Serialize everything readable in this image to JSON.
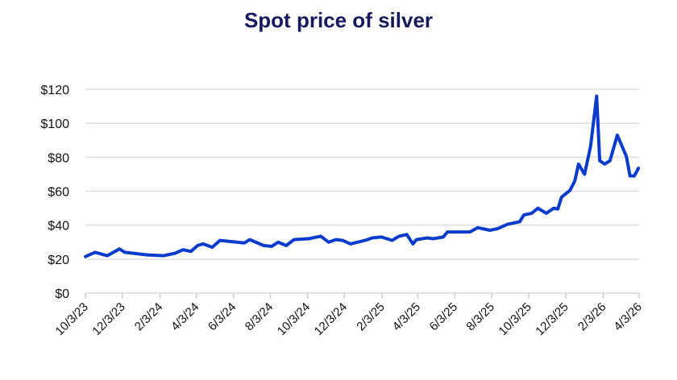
{
  "chart_data": {
    "type": "line",
    "title": "Spot price of silver",
    "xlabel": "",
    "ylabel": "",
    "ylim": [
      0,
      120
    ],
    "xlim": [
      "2023-10-03",
      "2026-04-03"
    ],
    "grid": "horizontal",
    "line_color": "#0a3bcc",
    "y_ticks": [
      0,
      20,
      40,
      60,
      80,
      100,
      120
    ],
    "y_tick_labels": [
      "$0",
      "$20",
      "$40",
      "$60",
      "$80",
      "$100",
      "$120"
    ],
    "x_ticks": [
      "2023-10-03",
      "2023-12-03",
      "2024-02-03",
      "2024-04-03",
      "2024-06-03",
      "2024-08-03",
      "2024-10-03",
      "2024-12-03",
      "2025-02-03",
      "2025-04-03",
      "2025-06-03",
      "2025-08-03",
      "2025-10-03",
      "2025-12-03",
      "2026-02-03",
      "2026-04-03"
    ],
    "x_tick_labels": [
      "10/3/23",
      "12/3/23",
      "2/3/24",
      "4/3/24",
      "6/3/24",
      "8/3/24",
      "10/3/24",
      "12/3/24",
      "2/3/25",
      "4/3/25",
      "6/3/25",
      "8/3/25",
      "10/3/25",
      "12/3/25",
      "2/3/26",
      "4/3/26"
    ],
    "series": [
      {
        "x": [
          "2023-10-03",
          "2023-10-19",
          "2023-11-08",
          "2023-11-28",
          "2023-12-07",
          "2024-01-13",
          "2024-02-09",
          "2024-02-28",
          "2024-03-12",
          "2024-03-25",
          "2024-04-05",
          "2024-04-14",
          "2024-04-29",
          "2024-05-12",
          "2024-06-21",
          "2024-06-30",
          "2024-07-23",
          "2024-08-05",
          "2024-08-16",
          "2024-08-29",
          "2024-09-11",
          "2024-10-05",
          "2024-10-25",
          "2024-11-07",
          "2024-11-19",
          "2024-11-30",
          "2024-12-13",
          "2025-01-06",
          "2025-01-18",
          "2025-02-02",
          "2025-02-20",
          "2025-03-03",
          "2025-03-16",
          "2025-03-26",
          "2025-04-01",
          "2025-04-19",
          "2025-04-28",
          "2025-05-15",
          "2025-05-22",
          "2025-06-04",
          "2025-06-28",
          "2025-07-11",
          "2025-07-31",
          "2025-08-13",
          "2025-08-29",
          "2025-09-18",
          "2025-09-25",
          "2025-10-08",
          "2025-10-18",
          "2025-11-01",
          "2025-11-13",
          "2025-11-20",
          "2025-11-26",
          "2025-12-10",
          "2025-12-18",
          "2025-12-24",
          "2026-01-03",
          "2026-01-13",
          "2026-01-23",
          "2026-01-28",
          "2026-02-05",
          "2026-02-14",
          "2026-02-26",
          "2026-03-13",
          "2026-03-19",
          "2026-03-26",
          "2026-04-02"
        ],
        "values": [
          21.5,
          24,
          22,
          26,
          24,
          22.5,
          22,
          23.5,
          25.5,
          24.5,
          28,
          29,
          27,
          31,
          29.5,
          31.5,
          28,
          27.5,
          30,
          28,
          31.5,
          32,
          33.5,
          30,
          31.5,
          31,
          29,
          31,
          32.5,
          33,
          31,
          33.5,
          34.5,
          29,
          31.5,
          32.5,
          32,
          33,
          36,
          36,
          36,
          38.5,
          37,
          38,
          40.5,
          42,
          46,
          47,
          50,
          47,
          50,
          49.5,
          56.5,
          60.5,
          66,
          76,
          70,
          86.5,
          116,
          78,
          76,
          78,
          93,
          80.5,
          69,
          69,
          73.5
        ]
      }
    ]
  }
}
